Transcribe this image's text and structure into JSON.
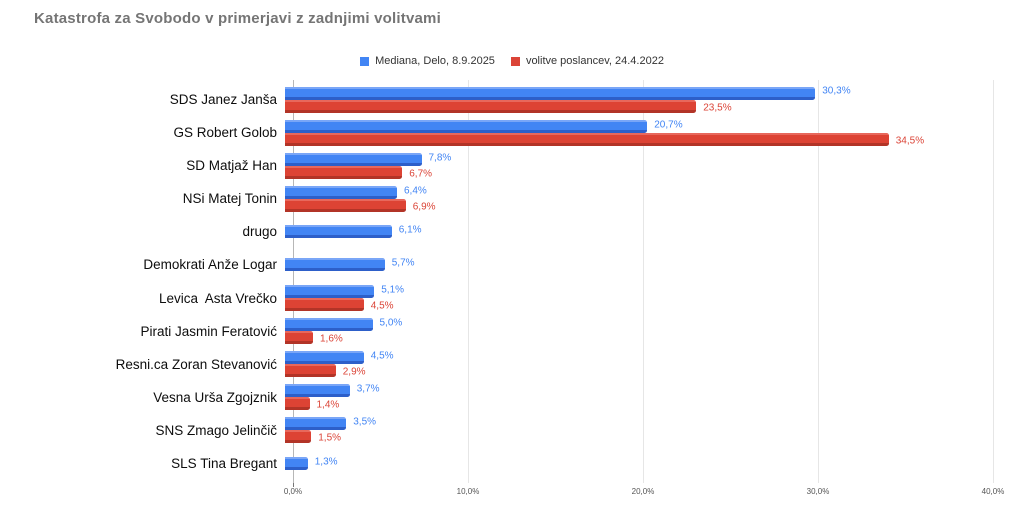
{
  "chart_data": {
    "type": "bar",
    "orientation": "horizontal",
    "title": "Katastrofa za Svobodo v primerjavi z zadnjimi volitvami",
    "categories": [
      "SDS Janez Janša",
      "GS Robert Golob",
      "SD Matjaž Han",
      "NSi Matej Tonin",
      "drugo",
      "Demokrati Anže Logar",
      "Levica  Asta Vrečko",
      "Pirati Jasmin Feratović",
      "Resni.ca Zoran Stevanović",
      "Vesna Urša Zgojznik",
      "SNS Zmago Jelinčič",
      "SLS Tina Bregant"
    ],
    "series": [
      {
        "name": "Mediana, Delo, 8.9.2025",
        "color": "#4285f4",
        "values": [
          30.3,
          20.7,
          7.8,
          6.4,
          6.1,
          5.7,
          5.1,
          5.0,
          4.5,
          3.7,
          3.5,
          1.3
        ],
        "labels": [
          "30,3%",
          "20,7%",
          "7,8%",
          "6,4%",
          "6,1%",
          "5,7%",
          "5,1%",
          "5,0%",
          "4,5%",
          "3,7%",
          "3,5%",
          "1,3%"
        ]
      },
      {
        "name": "volitve poslancev, 24.4.2022",
        "color": "#db4437",
        "values": [
          23.5,
          34.5,
          6.7,
          6.9,
          null,
          null,
          4.5,
          1.6,
          2.9,
          1.4,
          1.5,
          null
        ],
        "labels": [
          "23,5%",
          "34,5%",
          "6,7%",
          "6,9%",
          null,
          null,
          "4,5%",
          "1,6%",
          "2,9%",
          "1,4%",
          "1,5%",
          null
        ]
      }
    ],
    "xlim": [
      0,
      40
    ],
    "x_ticks": [
      {
        "value": 0,
        "label": "0,0%"
      },
      {
        "value": 10,
        "label": "10,0%"
      },
      {
        "value": 20,
        "label": "20,0%"
      },
      {
        "value": 30,
        "label": "30,0%"
      },
      {
        "value": 40,
        "label": "40,0%"
      }
    ],
    "grid": "vertical",
    "legend_position": "top-center",
    "colors": {
      "background": "#ffffff",
      "title_text": "#757575",
      "gridline": "#e6e6e6",
      "axis_line": "#b7b7b7"
    }
  }
}
